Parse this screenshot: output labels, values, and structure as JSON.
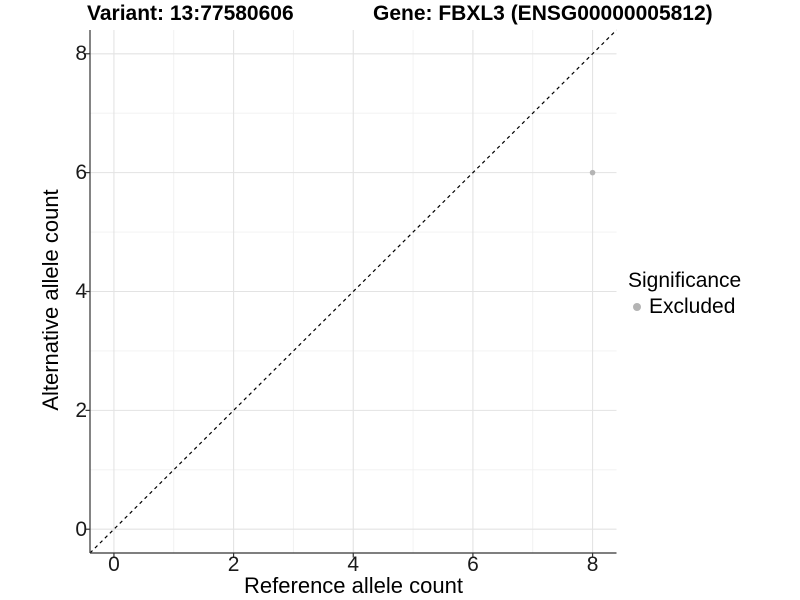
{
  "titles": {
    "variant": "Variant: 13:77580606",
    "gene": "Gene: FBXL3 (ENSG00000005812)"
  },
  "chart_data": {
    "type": "scatter",
    "title": "Variant: 13:77580606    Gene: FBXL3 (ENSG00000005812)",
    "xlabel": "Reference allele count",
    "ylabel": "Alternative allele count",
    "xlim": [
      -0.4,
      8.4
    ],
    "ylim": [
      -0.4,
      8.4
    ],
    "xticks": [
      0,
      2,
      4,
      6,
      8
    ],
    "yticks": [
      0,
      2,
      4,
      6,
      8
    ],
    "minor_xticks": [
      1,
      3,
      5,
      7
    ],
    "minor_yticks": [
      1,
      3,
      5,
      7
    ],
    "grid": true,
    "reference_line": {
      "slope": 1,
      "intercept": 0,
      "style": "dashed",
      "color": "#000000"
    },
    "series": [
      {
        "name": "Excluded",
        "color": "#b4b4b4",
        "points": [
          {
            "x": 8,
            "y": 6
          }
        ]
      }
    ],
    "legend": {
      "title": "Significance",
      "position": "right",
      "items": [
        {
          "label": "Excluded",
          "color": "#b4b4b4"
        }
      ]
    }
  },
  "colors": {
    "background": "#ffffff",
    "grid_major": "#e3e3e3",
    "grid_minor": "#f0f0f0",
    "axis_line": "#333333",
    "tick_mark": "#333333",
    "tick_text": "#1a1a1a",
    "title_text": "#000000"
  }
}
